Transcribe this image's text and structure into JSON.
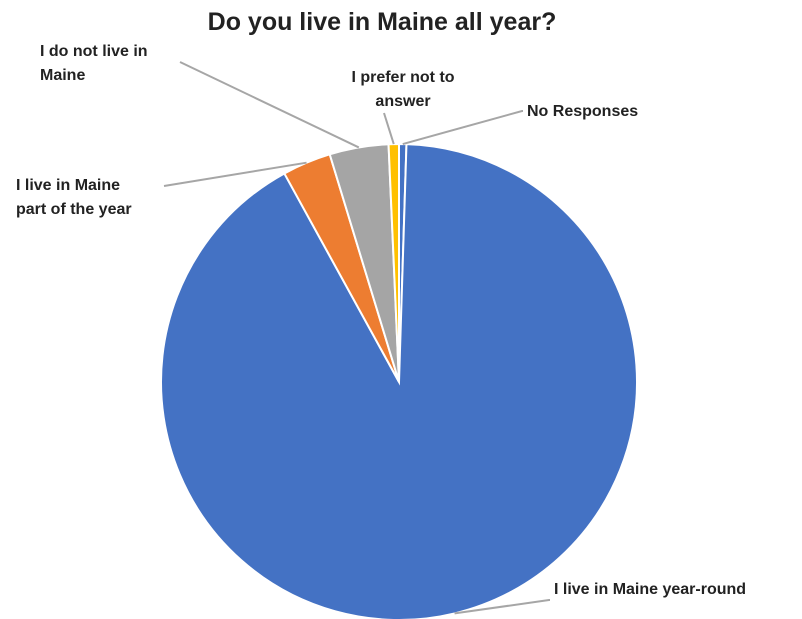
{
  "chart_data": {
    "type": "pie",
    "title": "Do you live in Maine all year?",
    "slices": [
      {
        "label": "No Responses",
        "value": 0.5,
        "color": "#4472C4"
      },
      {
        "label": "I live in Maine year-round",
        "value": 91.5,
        "color": "#4472C4"
      },
      {
        "label": "I live in Maine part of the year",
        "value": 3.3,
        "color": "#ED7D31"
      },
      {
        "label": "I do not live in Maine",
        "value": 4.0,
        "color": "#A5A5A5"
      },
      {
        "label": "I prefer not to answer",
        "value": 0.7,
        "color": "#FFC000"
      }
    ],
    "legend": "none",
    "start_angle_deg": 0,
    "direction": "clockwise"
  }
}
